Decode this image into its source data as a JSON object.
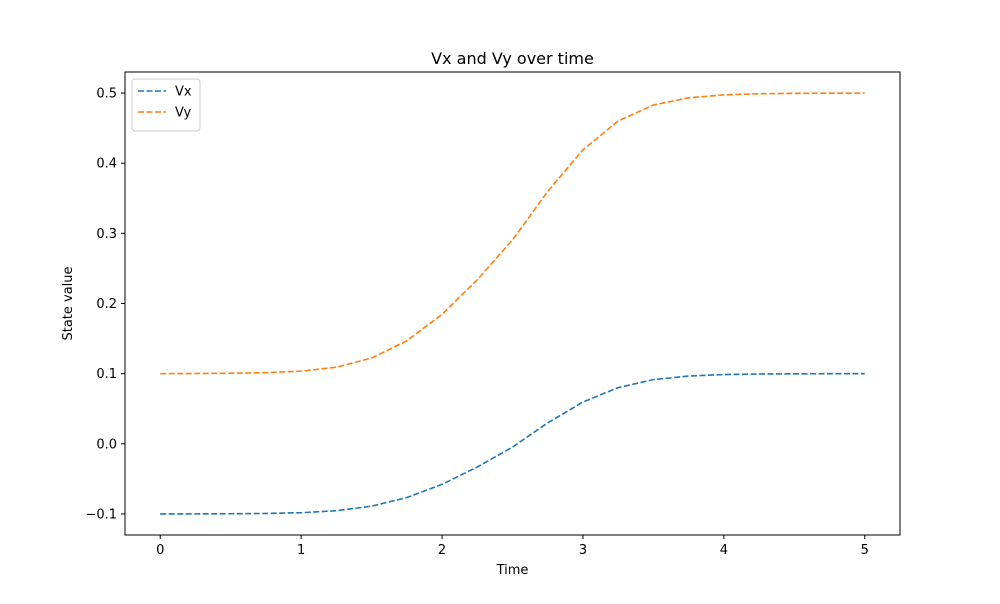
{
  "chart_data": {
    "type": "line",
    "title": "Vx and Vy over time",
    "xlabel": "Time",
    "ylabel": "State value",
    "xlim": [
      -0.25,
      5.25
    ],
    "ylim": [
      -0.13,
      0.53
    ],
    "xticks": [
      0,
      1,
      2,
      3,
      4,
      5
    ],
    "xtick_labels": [
      "0",
      "1",
      "2",
      "3",
      "4",
      "5"
    ],
    "yticks": [
      -0.1,
      0.0,
      0.1,
      0.2,
      0.3,
      0.4,
      0.5
    ],
    "ytick_labels": [
      "−0.1",
      "0.0",
      "0.1",
      "0.2",
      "0.3",
      "0.4",
      "0.5"
    ],
    "grid": false,
    "legend_position": "top-left",
    "line_style": "dashed",
    "x": [
      0,
      0.25,
      0.5,
      0.75,
      1.0,
      1.25,
      1.5,
      1.75,
      2.0,
      2.25,
      2.5,
      2.75,
      3.0,
      3.25,
      3.5,
      3.75,
      4.0,
      4.25,
      4.5,
      4.75,
      5.0
    ],
    "series": [
      {
        "name": "Vx",
        "color": "#1f77b4",
        "values": [
          -0.1,
          -0.0999,
          -0.0997,
          -0.0993,
          -0.0982,
          -0.0954,
          -0.0889,
          -0.0766,
          -0.0577,
          -0.0331,
          -0.0047,
          0.0299,
          0.0595,
          0.0801,
          0.0915,
          0.0966,
          0.0987,
          0.0995,
          0.0998,
          0.0999,
          0.1
        ]
      },
      {
        "name": "Vy",
        "color": "#ff7f0e",
        "values": [
          0.1,
          0.1002,
          0.1006,
          0.1014,
          0.1036,
          0.1092,
          0.1222,
          0.1468,
          0.1846,
          0.2338,
          0.2906,
          0.3598,
          0.419,
          0.4602,
          0.483,
          0.4932,
          0.4974,
          0.499,
          0.4996,
          0.4998,
          0.4999
        ]
      }
    ]
  }
}
